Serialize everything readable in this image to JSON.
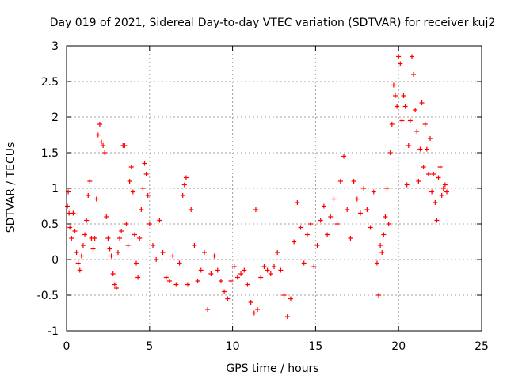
{
  "chart_data": {
    "type": "scatter",
    "title": "Day 019 of 2021, Sidereal Day-to-day VTEC variation (SDTVAR) for receiver kuj2",
    "xlabel": "GPS time / hours",
    "ylabel": "SDTVAR / TECUs",
    "xlim": [
      0,
      25
    ],
    "ylim": [
      -1,
      3
    ],
    "xticks": [
      "0",
      "5",
      "10",
      "15",
      "20",
      "25"
    ],
    "yticks": [
      "-1",
      "-0.5",
      "0",
      "0.5",
      "1",
      "1.5",
      "2",
      "2.5",
      "3"
    ],
    "grid": true,
    "marker": "plus",
    "color": "#ff0000",
    "series": [
      {
        "name": "SDTVAR",
        "points": [
          [
            0.05,
            0.75
          ],
          [
            0.1,
            0.95
          ],
          [
            0.15,
            0.65
          ],
          [
            0.2,
            0.45
          ],
          [
            0.3,
            0.3
          ],
          [
            0.4,
            0.65
          ],
          [
            0.5,
            0.4
          ],
          [
            0.6,
            0.1
          ],
          [
            0.7,
            -0.05
          ],
          [
            0.8,
            -0.15
          ],
          [
            0.9,
            0.05
          ],
          [
            1.0,
            0.2
          ],
          [
            1.1,
            0.35
          ],
          [
            1.2,
            0.55
          ],
          [
            1.3,
            0.9
          ],
          [
            1.4,
            1.1
          ],
          [
            1.5,
            0.3
          ],
          [
            1.6,
            0.15
          ],
          [
            1.7,
            0.3
          ],
          [
            1.8,
            0.85
          ],
          [
            1.9,
            1.75
          ],
          [
            2.0,
            1.9
          ],
          [
            2.1,
            1.65
          ],
          [
            2.2,
            1.6
          ],
          [
            2.3,
            1.5
          ],
          [
            2.4,
            0.6
          ],
          [
            2.5,
            0.3
          ],
          [
            2.6,
            0.15
          ],
          [
            2.7,
            0.05
          ],
          [
            2.8,
            -0.2
          ],
          [
            2.9,
            -0.35
          ],
          [
            3.0,
            -0.4
          ],
          [
            3.1,
            0.1
          ],
          [
            3.2,
            0.3
          ],
          [
            3.3,
            0.4
          ],
          [
            3.4,
            1.6
          ],
          [
            3.5,
            1.6
          ],
          [
            3.6,
            0.5
          ],
          [
            3.7,
            0.2
          ],
          [
            3.8,
            1.1
          ],
          [
            3.9,
            1.3
          ],
          [
            4.0,
            0.95
          ],
          [
            4.1,
            0.35
          ],
          [
            4.2,
            -0.05
          ],
          [
            4.3,
            -0.25
          ],
          [
            4.4,
            0.3
          ],
          [
            4.5,
            0.7
          ],
          [
            4.6,
            1.0
          ],
          [
            4.7,
            1.35
          ],
          [
            4.8,
            1.2
          ],
          [
            4.9,
            0.9
          ],
          [
            5.0,
            0.5
          ],
          [
            5.2,
            0.2
          ],
          [
            5.4,
            0.0
          ],
          [
            5.6,
            0.55
          ],
          [
            5.8,
            0.1
          ],
          [
            6.0,
            -0.25
          ],
          [
            6.2,
            -0.3
          ],
          [
            6.4,
            0.05
          ],
          [
            6.6,
            -0.35
          ],
          [
            6.8,
            -0.05
          ],
          [
            7.0,
            0.9
          ],
          [
            7.1,
            1.05
          ],
          [
            7.2,
            1.15
          ],
          [
            7.3,
            -0.35
          ],
          [
            7.5,
            0.7
          ],
          [
            7.7,
            0.2
          ],
          [
            7.9,
            -0.3
          ],
          [
            8.1,
            -0.15
          ],
          [
            8.3,
            0.1
          ],
          [
            8.5,
            -0.7
          ],
          [
            8.7,
            -0.2
          ],
          [
            8.9,
            0.05
          ],
          [
            9.1,
            -0.15
          ],
          [
            9.3,
            -0.3
          ],
          [
            9.5,
            -0.45
          ],
          [
            9.7,
            -0.55
          ],
          [
            9.9,
            -0.3
          ],
          [
            10.1,
            -0.1
          ],
          [
            10.3,
            -0.25
          ],
          [
            10.5,
            -0.2
          ],
          [
            10.7,
            -0.15
          ],
          [
            10.9,
            -0.35
          ],
          [
            11.1,
            -0.6
          ],
          [
            11.3,
            -0.75
          ],
          [
            11.4,
            0.7
          ],
          [
            11.5,
            -0.7
          ],
          [
            11.7,
            -0.25
          ],
          [
            11.9,
            -0.1
          ],
          [
            12.1,
            -0.15
          ],
          [
            12.3,
            -0.2
          ],
          [
            12.5,
            -0.1
          ],
          [
            12.7,
            0.1
          ],
          [
            12.9,
            -0.15
          ],
          [
            13.1,
            -0.5
          ],
          [
            13.3,
            -0.8
          ],
          [
            13.5,
            -0.55
          ],
          [
            13.7,
            0.25
          ],
          [
            13.9,
            0.8
          ],
          [
            14.1,
            0.45
          ],
          [
            14.3,
            -0.05
          ],
          [
            14.5,
            0.35
          ],
          [
            14.7,
            0.5
          ],
          [
            14.9,
            -0.1
          ],
          [
            15.1,
            0.2
          ],
          [
            15.3,
            0.55
          ],
          [
            15.5,
            0.75
          ],
          [
            15.7,
            0.35
          ],
          [
            15.9,
            0.6
          ],
          [
            16.1,
            0.85
          ],
          [
            16.3,
            0.5
          ],
          [
            16.5,
            1.1
          ],
          [
            16.7,
            1.45
          ],
          [
            16.9,
            0.7
          ],
          [
            17.1,
            0.3
          ],
          [
            17.3,
            1.1
          ],
          [
            17.5,
            0.85
          ],
          [
            17.7,
            0.65
          ],
          [
            17.9,
            1.0
          ],
          [
            18.1,
            0.7
          ],
          [
            18.3,
            0.45
          ],
          [
            18.5,
            0.95
          ],
          [
            18.7,
            -0.05
          ],
          [
            18.8,
            -0.5
          ],
          [
            18.9,
            0.2
          ],
          [
            19.0,
            0.1
          ],
          [
            19.1,
            0.35
          ],
          [
            19.2,
            0.6
          ],
          [
            19.3,
            1.0
          ],
          [
            19.4,
            0.5
          ],
          [
            19.5,
            1.5
          ],
          [
            19.6,
            1.9
          ],
          [
            19.7,
            2.45
          ],
          [
            19.8,
            2.3
          ],
          [
            19.9,
            2.15
          ],
          [
            20.0,
            2.85
          ],
          [
            20.1,
            2.75
          ],
          [
            20.2,
            1.95
          ],
          [
            20.3,
            2.3
          ],
          [
            20.4,
            2.15
          ],
          [
            20.5,
            1.05
          ],
          [
            20.6,
            1.6
          ],
          [
            20.7,
            1.95
          ],
          [
            20.8,
            2.85
          ],
          [
            20.9,
            2.6
          ],
          [
            21.0,
            2.1
          ],
          [
            21.1,
            1.8
          ],
          [
            21.2,
            1.1
          ],
          [
            21.3,
            1.55
          ],
          [
            21.4,
            2.2
          ],
          [
            21.5,
            1.3
          ],
          [
            21.6,
            1.9
          ],
          [
            21.7,
            1.55
          ],
          [
            21.8,
            1.2
          ],
          [
            21.9,
            1.7
          ],
          [
            22.0,
            0.95
          ],
          [
            22.1,
            1.2
          ],
          [
            22.2,
            0.8
          ],
          [
            22.3,
            0.55
          ],
          [
            22.4,
            1.15
          ],
          [
            22.5,
            1.3
          ],
          [
            22.6,
            0.9
          ],
          [
            22.7,
            1.0
          ],
          [
            22.8,
            1.05
          ],
          [
            22.9,
            0.95
          ]
        ]
      }
    ]
  }
}
